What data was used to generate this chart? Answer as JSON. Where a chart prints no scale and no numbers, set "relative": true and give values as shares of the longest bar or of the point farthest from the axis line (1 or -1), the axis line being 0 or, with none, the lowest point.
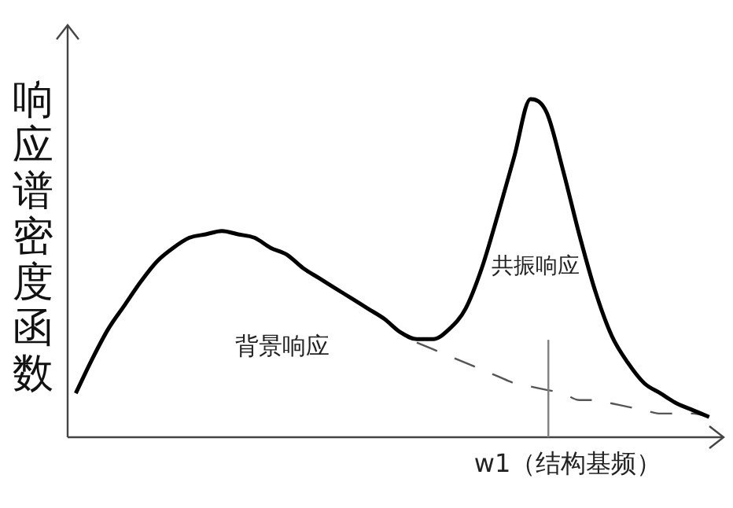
{
  "chart_data": {
    "type": "line",
    "relative": true,
    "ylabel": "响应谱密度函数",
    "categories": [
      null,
      null,
      null,
      null,
      null,
      null,
      null,
      null,
      null,
      null,
      null,
      null,
      null,
      null,
      null,
      null,
      null,
      null,
      null,
      null,
      null,
      null,
      null,
      null,
      null,
      null,
      null,
      null,
      null,
      null,
      null,
      null,
      null,
      null,
      null,
      null,
      null,
      null,
      null,
      null
    ],
    "series": [
      {
        "color": "#000000",
        "line_style": "solid",
        "values": [
          0.13,
          0.23,
          0.32,
          0.39,
          0.46,
          0.52,
          0.56,
          0.59,
          0.6,
          0.61,
          0.6,
          0.59,
          0.56,
          0.54,
          0.5,
          0.47,
          0.44,
          0.41,
          0.38,
          0.35,
          0.31,
          0.29,
          0.29,
          0.32,
          0.38,
          0.5,
          0.66,
          0.83,
          1,
          0.96,
          0.79,
          0.6,
          0.43,
          0.3,
          0.22,
          0.16,
          0.13,
          0.1,
          0.08,
          0.06
        ]
      },
      {
        "color": "#555555",
        "line_style": "dashed",
        "values": [
          null,
          null,
          null,
          null,
          null,
          null,
          null,
          null,
          null,
          null,
          null,
          null,
          null,
          null,
          null,
          null,
          null,
          null,
          null,
          null,
          null,
          0.28,
          0.26,
          0.24,
          0.22,
          0.2,
          0.18,
          0.16,
          0.15,
          0.14,
          0.13,
          0.11,
          0.11,
          0.1,
          0.09,
          0.08,
          0.07,
          0.07,
          0.07,
          0.06
        ]
      }
    ],
    "annotations": [
      "背景响应",
      "共振响应",
      "w1（结构基频）"
    ],
    "marker": "none",
    "grid": false,
    "legend": false
  }
}
